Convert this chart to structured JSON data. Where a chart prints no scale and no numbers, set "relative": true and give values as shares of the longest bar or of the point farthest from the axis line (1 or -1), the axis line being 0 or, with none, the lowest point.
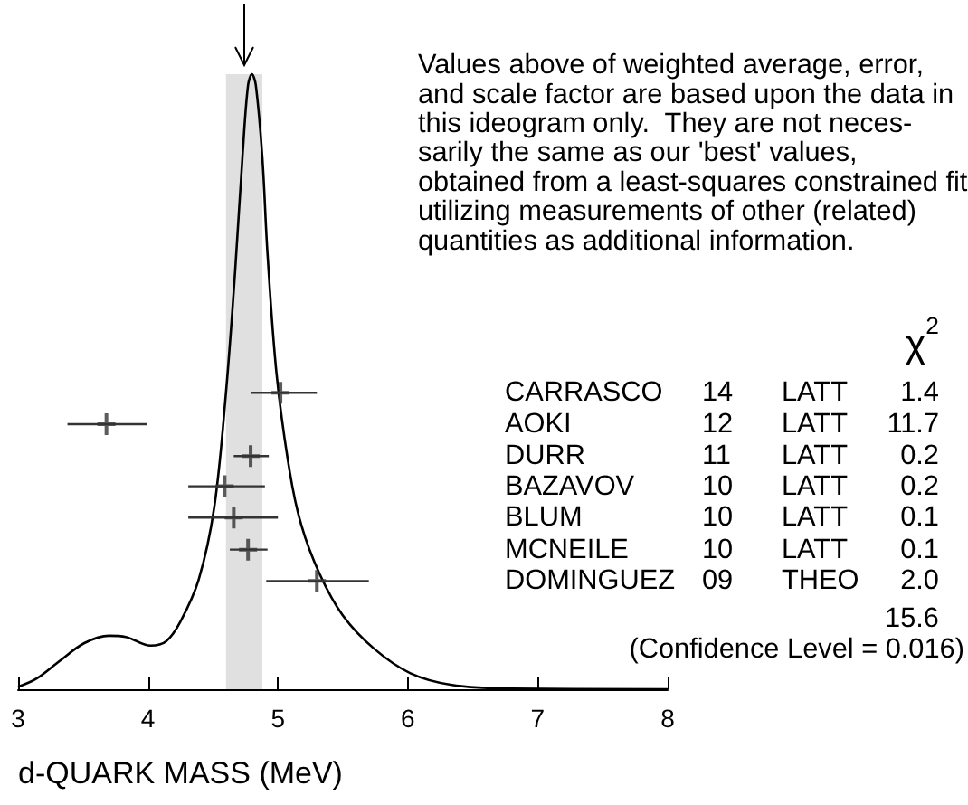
{
  "chart_data": {
    "type": "line",
    "relative": true,
    "xlabel": "d-QUARK MASS (MeV)",
    "xlim": [
      3,
      8
    ],
    "xticks": [
      3,
      4,
      5,
      6,
      7,
      8
    ],
    "grid": false,
    "series": [
      {
        "type": "line",
        "marker": "none",
        "color": "#000000",
        "x": [
          3.0,
          3.14,
          3.32,
          3.51,
          3.7,
          3.83,
          4.02,
          4.14,
          4.25,
          4.39,
          4.51,
          4.6,
          4.67,
          4.73,
          4.77,
          4.8,
          4.83,
          4.88,
          4.92,
          4.99,
          5.09,
          5.18,
          5.32,
          5.5,
          5.74,
          6.02,
          6.34,
          6.8,
          8.0
        ],
        "values": [
          0.004,
          0.017,
          0.046,
          0.075,
          0.087,
          0.085,
          0.071,
          0.078,
          0.11,
          0.178,
          0.296,
          0.482,
          0.678,
          0.875,
          0.982,
          1.0,
          0.982,
          0.865,
          0.708,
          0.512,
          0.355,
          0.267,
          0.188,
          0.12,
          0.066,
          0.026,
          0.007,
          0.001,
          0
        ]
      },
      {
        "type": "scatter",
        "marker": "cross",
        "color": "#333333",
        "x": [
          5.02,
          3.68,
          4.79,
          4.59,
          4.66,
          4.77,
          5.3
        ],
        "values": [
          0.482,
          0.431,
          0.379,
          0.33,
          0.279,
          0.227,
          0.176
        ],
        "xerrors": [
          [
            4.79,
            5.3
          ],
          [
            3.38,
            3.99
          ],
          [
            4.66,
            4.93
          ],
          [
            4.31,
            4.9
          ],
          [
            4.31,
            5.0
          ],
          [
            4.63,
            4.92
          ],
          [
            4.91,
            5.7
          ]
        ]
      }
    ],
    "bands": [
      {
        "axis": "x",
        "from": 4.6,
        "to": 4.88,
        "color": "#e0e0e0"
      }
    ],
    "annotations": [
      "Values above of weighted average, error,\nand scale factor are based upon the data in\nthis ideogram only.  They are not neces-\nsarily the same as our 'best' values,\nobtained from a least-squares constrained fit\nutilizing measurements of other (related)\nquantities as additional information.",
      "χ$^{2}$",
      "CARRASCO",
      "14",
      "LATT",
      "1.4",
      "AOKI",
      "12",
      "LATT",
      "11.7",
      "DURR",
      "11",
      "LATT",
      "0.2",
      "BAZAVOV",
      "10",
      "LATT",
      "0.2",
      "BLUM",
      "10",
      "LATT",
      "0.1",
      "MCNEILE",
      "10",
      "LATT",
      "0.1",
      "DOMINGUEZ",
      "09",
      "THEO",
      "2.0",
      "15.6",
      "(Confidence Level = 0.016)"
    ]
  }
}
